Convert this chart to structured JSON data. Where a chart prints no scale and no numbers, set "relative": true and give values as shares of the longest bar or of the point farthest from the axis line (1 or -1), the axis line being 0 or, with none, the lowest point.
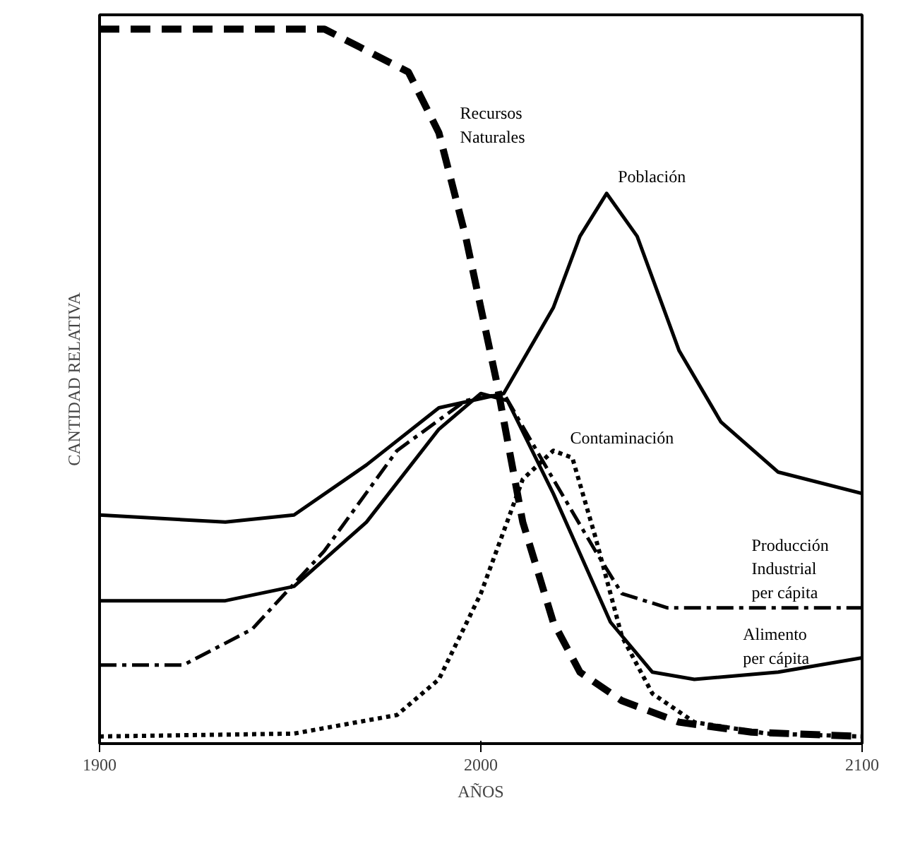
{
  "chart_data": {
    "type": "line",
    "xlabel": "AÑOS",
    "ylabel": "CANTIDAD RELATIVA",
    "relative": true,
    "xlim": [
      1900,
      2100
    ],
    "xticks": [
      1900,
      2000,
      2100
    ],
    "grid": false,
    "series": [
      {
        "name": "Recursos\nNaturales",
        "color": "#000000",
        "line_style": "dashed",
        "x": [
          1900,
          1959,
          1981,
          1989,
          1996,
          2004,
          2011,
          2019,
          2026,
          2037,
          2052,
          2071,
          2100
        ],
        "values": [
          1.0,
          1.0,
          0.94,
          0.855,
          0.71,
          0.51,
          0.31,
          0.17,
          0.1,
          0.06,
          0.03,
          0.016,
          0.01
        ]
      },
      {
        "name": "Población",
        "color": "#000000",
        "line_style": "solid",
        "x": [
          1900,
          1933,
          1951,
          1970,
          1989,
          2006,
          2019,
          2026,
          2033,
          2041,
          2052,
          2063,
          2078,
          2100
        ],
        "values": [
          0.32,
          0.31,
          0.32,
          0.39,
          0.47,
          0.49,
          0.61,
          0.71,
          0.77,
          0.71,
          0.55,
          0.45,
          0.38,
          0.35
        ]
      },
      {
        "name": "Alimento\nper cápita",
        "color": "#000000",
        "line_style": "solid",
        "x": [
          1900,
          1933,
          1951,
          1970,
          1989,
          2000,
          2007,
          2019,
          2034,
          2045,
          2056,
          2078,
          2100
        ],
        "values": [
          0.2,
          0.2,
          0.22,
          0.31,
          0.44,
          0.49,
          0.48,
          0.35,
          0.17,
          0.1,
          0.09,
          0.1,
          0.12
        ]
      },
      {
        "name": "Producción\nIndustrial\nper cápita",
        "color": "#000000",
        "line_style": "dashdot",
        "x": [
          1900,
          1922,
          1940,
          1959,
          1978,
          1996,
          2006,
          2019,
          2030,
          2037,
          2049,
          2071,
          2100
        ],
        "values": [
          0.11,
          0.11,
          0.16,
          0.27,
          0.41,
          0.48,
          0.49,
          0.37,
          0.27,
          0.21,
          0.19,
          0.19,
          0.19
        ]
      },
      {
        "name": "Contaminación",
        "color": "#000000",
        "line_style": "dotted",
        "x": [
          1900,
          1951,
          1978,
          1989,
          2000,
          2011,
          2019,
          2024,
          2030,
          2037,
          2045,
          2056,
          2075,
          2100
        ],
        "values": [
          0.01,
          0.014,
          0.04,
          0.09,
          0.21,
          0.37,
          0.41,
          0.4,
          0.29,
          0.15,
          0.07,
          0.03,
          0.014,
          0.01
        ]
      }
    ]
  }
}
